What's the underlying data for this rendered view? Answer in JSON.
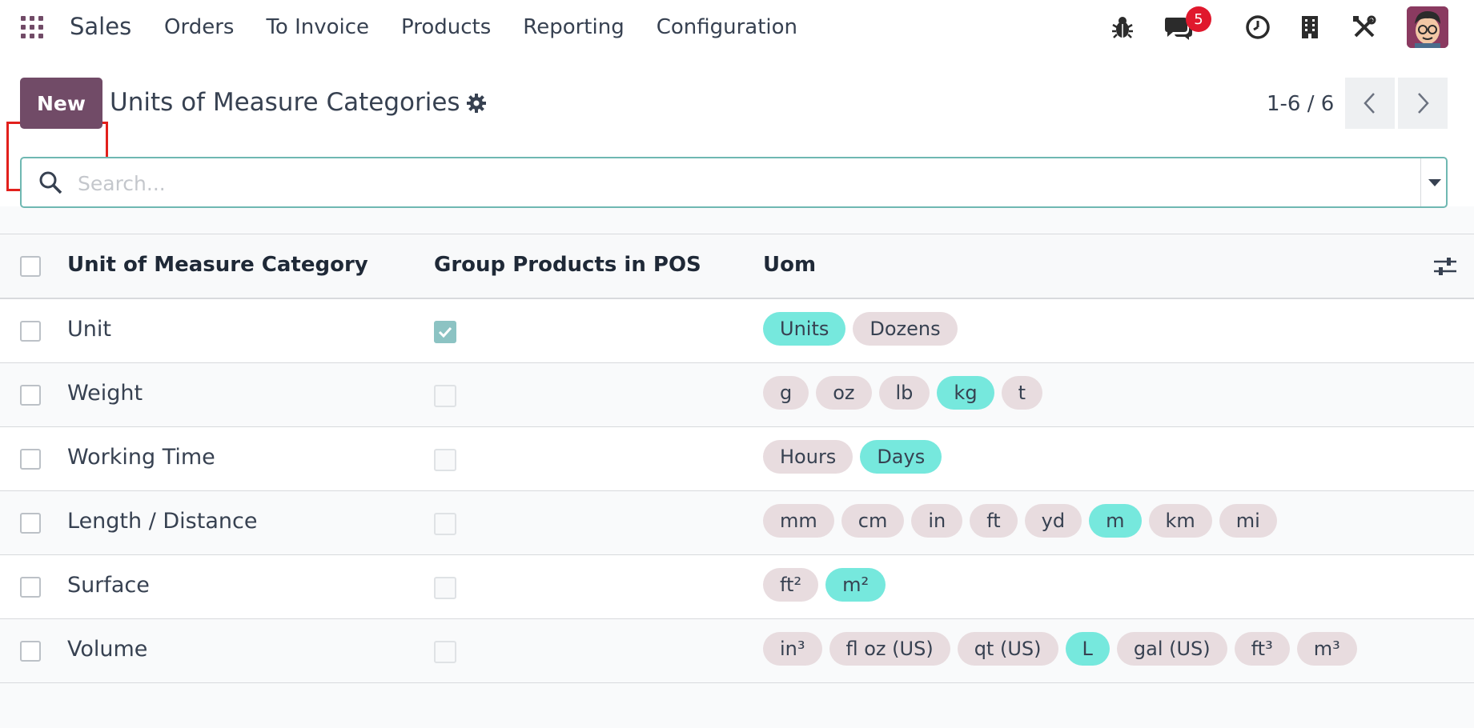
{
  "navbar": {
    "app_name": "Sales",
    "menu": [
      "Orders",
      "To Invoice",
      "Products",
      "Reporting",
      "Configuration"
    ],
    "messages_count": "5",
    "icons": [
      "bug-icon",
      "chat-icon",
      "clock-icon",
      "building-icon",
      "tools-icon"
    ]
  },
  "control": {
    "new_label": "New",
    "title": "Units of Measure Categories",
    "pager": "1-6 / 6",
    "search_placeholder": "Search..."
  },
  "table": {
    "headers": {
      "category": "Unit of Measure Category",
      "pos": "Group Products in POS",
      "uom": "Uom"
    },
    "rows": [
      {
        "name": "Unit",
        "pos": true,
        "uoms": [
          {
            "label": "Units",
            "ref": true
          },
          {
            "label": "Dozens",
            "ref": false
          }
        ]
      },
      {
        "name": "Weight",
        "pos": false,
        "uoms": [
          {
            "label": "g",
            "ref": false
          },
          {
            "label": "oz",
            "ref": false
          },
          {
            "label": "lb",
            "ref": false
          },
          {
            "label": "kg",
            "ref": true
          },
          {
            "label": "t",
            "ref": false
          }
        ]
      },
      {
        "name": "Working Time",
        "pos": false,
        "uoms": [
          {
            "label": "Hours",
            "ref": false
          },
          {
            "label": "Days",
            "ref": true
          }
        ]
      },
      {
        "name": "Length / Distance",
        "pos": false,
        "uoms": [
          {
            "label": "mm",
            "ref": false
          },
          {
            "label": "cm",
            "ref": false
          },
          {
            "label": "in",
            "ref": false
          },
          {
            "label": "ft",
            "ref": false
          },
          {
            "label": "yd",
            "ref": false
          },
          {
            "label": "m",
            "ref": true
          },
          {
            "label": "km",
            "ref": false
          },
          {
            "label": "mi",
            "ref": false
          }
        ]
      },
      {
        "name": "Surface",
        "pos": false,
        "uoms": [
          {
            "label": "ft²",
            "ref": false
          },
          {
            "label": "m²",
            "ref": true
          }
        ]
      },
      {
        "name": "Volume",
        "pos": false,
        "uoms": [
          {
            "label": "in³",
            "ref": false
          },
          {
            "label": "fl oz (US)",
            "ref": false
          },
          {
            "label": "qt (US)",
            "ref": false
          },
          {
            "label": "L",
            "ref": true
          },
          {
            "label": "gal (US)",
            "ref": false
          },
          {
            "label": "ft³",
            "ref": false
          },
          {
            "label": "m³",
            "ref": false
          }
        ]
      }
    ]
  },
  "colors": {
    "brand": "#714b67",
    "reference_tag": "#76e8dd",
    "tag": "#e8dcdf",
    "badge": "#e0182d",
    "highlight": "#e2201c"
  }
}
